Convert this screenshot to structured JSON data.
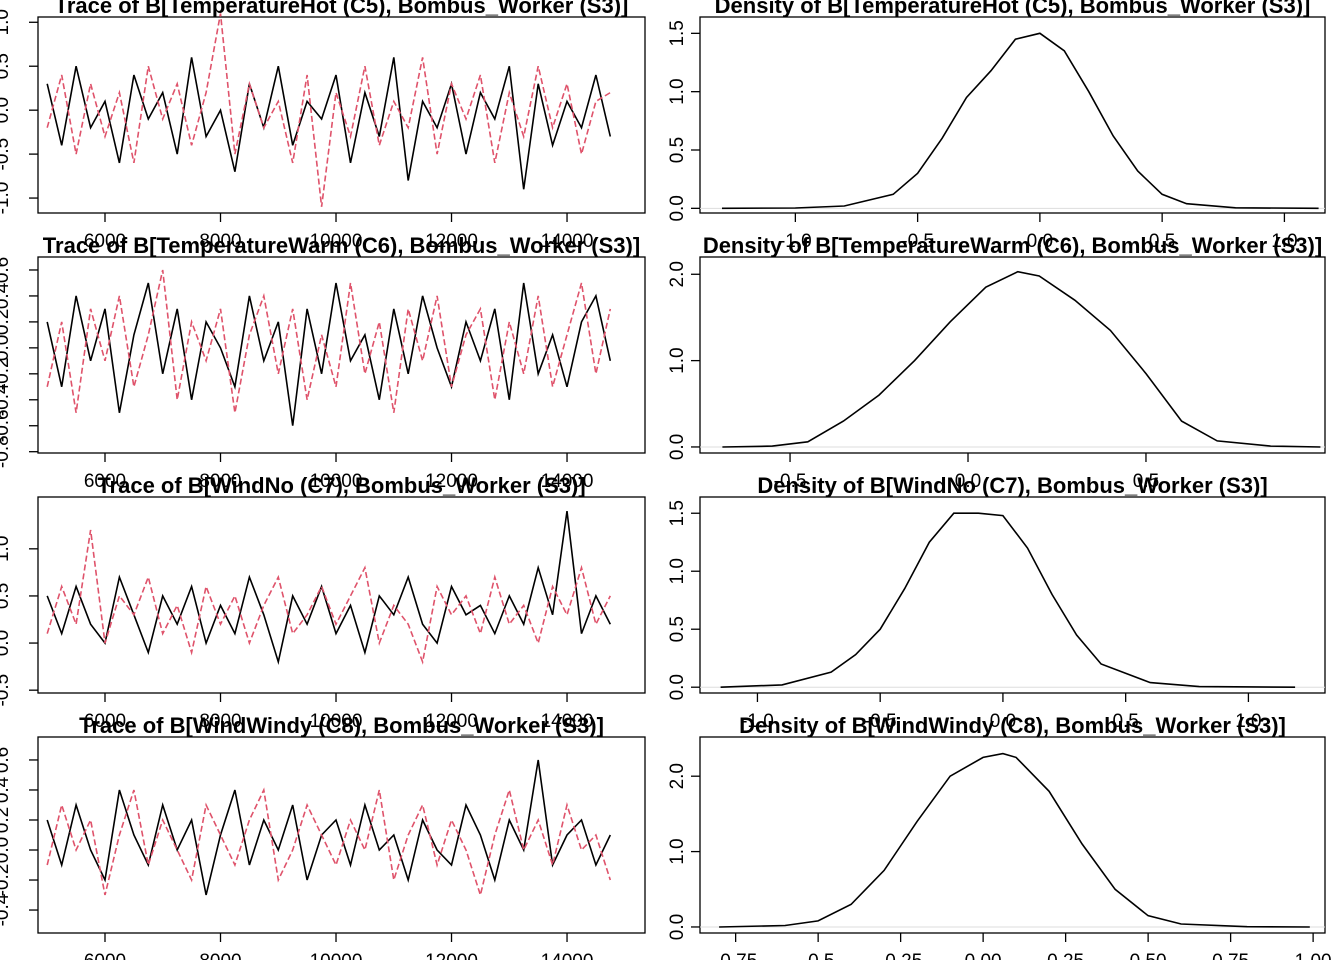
{
  "chart_data": [
    {
      "type": "line",
      "title": "Trace of B[TemperatureHot (C5), Bombus_Worker (S3)]",
      "x": [
        5000,
        5250,
        5500,
        5750,
        6000,
        6250,
        6500,
        6750,
        7000,
        7250,
        7500,
        7750,
        8000,
        8250,
        8500,
        8750,
        9000,
        9250,
        9500,
        9750,
        10000,
        10250,
        10500,
        10750,
        11000,
        11250,
        11500,
        11750,
        12000,
        12250,
        12500,
        12750,
        13000,
        13250,
        13500,
        13750,
        14000,
        14250,
        14500,
        14750
      ],
      "series": [
        {
          "color": "#000000",
          "values": [
            0.3,
            -0.4,
            0.5,
            -0.2,
            0.1,
            -0.6,
            0.4,
            -0.1,
            0.2,
            -0.5,
            0.6,
            -0.3,
            0.0,
            -0.7,
            0.3,
            -0.2,
            0.5,
            -0.4,
            0.1,
            -0.1,
            0.4,
            -0.6,
            0.2,
            -0.3,
            0.6,
            -0.8,
            0.1,
            -0.2,
            0.3,
            -0.5,
            0.2,
            -0.1,
            0.5,
            -0.9,
            0.3,
            -0.4,
            0.1,
            -0.2,
            0.4,
            -0.3
          ]
        },
        {
          "color": "#DF536B",
          "values": [
            -0.2,
            0.4,
            -0.5,
            0.3,
            -0.3,
            0.2,
            -0.6,
            0.5,
            -0.1,
            0.3,
            -0.4,
            0.2,
            1.1,
            -0.5,
            0.3,
            -0.2,
            0.1,
            -0.6,
            0.4,
            -1.1,
            0.2,
            -0.3,
            0.5,
            -0.4,
            0.1,
            -0.2,
            0.6,
            -0.5,
            0.3,
            -0.1,
            0.4,
            -0.6,
            0.2,
            -0.3,
            0.5,
            -0.2,
            0.3,
            -0.5,
            0.1,
            0.2
          ]
        }
      ],
      "xlim": [
        4840,
        15350
      ],
      "ylim": [
        -1.17,
        1.06
      ],
      "xticks": [
        6000,
        8000,
        10000,
        12000,
        14000
      ],
      "yticks": [
        {
          "value": -1,
          "label": "-1.0"
        },
        -0.5,
        {
          "value": 0,
          "label": "0.0"
        },
        0.5,
        {
          "value": 1,
          "label": "1.0"
        }
      ]
    },
    {
      "type": "line",
      "title": "Density of B[TemperatureHot (C5), Bombus_Worker (S3)]",
      "x": [
        -1.3,
        -1.0,
        -0.8,
        -0.6,
        -0.5,
        -0.4,
        -0.3,
        -0.2,
        -0.1,
        0.0,
        0.1,
        0.2,
        0.3,
        0.4,
        0.5,
        0.6,
        0.8,
        1.14
      ],
      "values": [
        0.0,
        0.003,
        0.02,
        0.12,
        0.3,
        0.6,
        0.95,
        1.18,
        1.45,
        1.5,
        1.35,
        1.0,
        0.62,
        0.32,
        0.12,
        0.04,
        0.005,
        0.0
      ],
      "color": "#000000",
      "xlim": [
        -1.39,
        1.166
      ],
      "ylim": [
        -0.04,
        1.64
      ],
      "xticks": [
        {
          "value": -1,
          "label": "-1.0"
        },
        -0.5,
        {
          "value": 0,
          "label": "0.0"
        },
        0.5,
        {
          "value": 1,
          "label": "1.0"
        }
      ],
      "yticks": [
        {
          "value": 0,
          "label": "0.0"
        },
        0.5,
        {
          "value": 1,
          "label": "1.0"
        },
        1.5
      ]
    },
    {
      "type": "line",
      "title": "Trace of B[TemperatureWarm (C6), Bombus_Worker (S3)]",
      "x": [
        5000,
        5250,
        5500,
        5750,
        6000,
        6250,
        6500,
        6750,
        7000,
        7250,
        7500,
        7750,
        8000,
        8250,
        8500,
        8750,
        9000,
        9250,
        9500,
        9750,
        10000,
        10250,
        10500,
        10750,
        11000,
        11250,
        11500,
        11750,
        12000,
        12250,
        12500,
        12750,
        13000,
        13250,
        13500,
        13750,
        14000,
        14250,
        14500,
        14750
      ],
      "series": [
        {
          "color": "#000000",
          "values": [
            0.2,
            -0.3,
            0.4,
            -0.1,
            0.3,
            -0.5,
            0.1,
            0.5,
            -0.2,
            0.3,
            -0.4,
            0.2,
            0.0,
            -0.3,
            0.4,
            -0.1,
            0.2,
            -0.6,
            0.3,
            -0.2,
            0.5,
            -0.1,
            0.1,
            -0.4,
            0.3,
            -0.2,
            0.4,
            0.0,
            -0.3,
            0.2,
            -0.1,
            0.3,
            -0.4,
            0.5,
            -0.2,
            0.1,
            -0.3,
            0.2,
            0.4,
            -0.1
          ]
        },
        {
          "color": "#DF536B",
          "values": [
            -0.3,
            0.2,
            -0.5,
            0.3,
            -0.1,
            0.4,
            -0.3,
            0.1,
            0.6,
            -0.4,
            0.2,
            -0.1,
            0.3,
            -0.5,
            0.1,
            0.4,
            -0.2,
            0.3,
            -0.4,
            0.1,
            -0.3,
            0.5,
            -0.2,
            0.2,
            -0.5,
            0.3,
            -0.1,
            0.4,
            -0.3,
            0.1,
            0.3,
            -0.4,
            0.2,
            -0.2,
            0.4,
            -0.3,
            0.1,
            0.5,
            -0.2,
            0.3
          ]
        }
      ],
      "xlim": [
        4840,
        15350
      ],
      "ylim": [
        -0.81,
        0.7
      ],
      "xticks": [
        6000,
        8000,
        10000,
        12000,
        14000
      ],
      "yticks": [
        -0.8,
        -0.6,
        -0.4,
        -0.2,
        {
          "value": 0,
          "label": "0.0"
        },
        0.2,
        0.4,
        0.6
      ]
    },
    {
      "type": "line",
      "title": "Density of B[TemperatureWarm (C6), Bombus_Worker (S3)]",
      "x": [
        -0.69,
        -0.55,
        -0.45,
        -0.35,
        -0.25,
        -0.15,
        -0.05,
        0.05,
        0.14,
        0.2,
        0.3,
        0.4,
        0.5,
        0.6,
        0.7,
        0.85,
        0.99
      ],
      "values": [
        0.0,
        0.01,
        0.06,
        0.3,
        0.6,
        1.0,
        1.45,
        1.85,
        2.03,
        1.98,
        1.7,
        1.35,
        0.85,
        0.3,
        0.07,
        0.01,
        0.0
      ],
      "color": "#000000",
      "xlim": [
        -0.753,
        1.003
      ],
      "ylim": [
        -0.07,
        2.2
      ],
      "xticks": [
        -0.5,
        {
          "value": 0,
          "label": "0.0"
        },
        0.5
      ],
      "yticks": [
        {
          "value": 0,
          "label": "0.0"
        },
        {
          "value": 1,
          "label": "1.0"
        },
        {
          "value": 2,
          "label": "2.0"
        }
      ]
    },
    {
      "type": "line",
      "title": "Trace of B[WindNo (C7), Bombus_Worker (S3)]",
      "x": [
        5000,
        5250,
        5500,
        5750,
        6000,
        6250,
        6500,
        6750,
        7000,
        7250,
        7500,
        7750,
        8000,
        8250,
        8500,
        8750,
        9000,
        9250,
        9500,
        9750,
        10000,
        10250,
        10500,
        10750,
        11000,
        11250,
        11500,
        11750,
        12000,
        12250,
        12500,
        12750,
        13000,
        13250,
        13500,
        13750,
        14000,
        14250,
        14500,
        14750
      ],
      "series": [
        {
          "color": "#000000",
          "values": [
            0.5,
            0.1,
            0.6,
            0.2,
            0.0,
            0.7,
            0.3,
            -0.1,
            0.5,
            0.2,
            0.6,
            0.0,
            0.4,
            0.1,
            0.7,
            0.3,
            -0.2,
            0.5,
            0.2,
            0.6,
            0.1,
            0.4,
            -0.1,
            0.5,
            0.3,
            0.7,
            0.2,
            0.0,
            0.6,
            0.3,
            0.4,
            0.1,
            0.5,
            0.2,
            0.8,
            0.3,
            1.4,
            0.1,
            0.5,
            0.2
          ]
        },
        {
          "color": "#DF536B",
          "values": [
            0.1,
            0.6,
            0.2,
            1.2,
            0.0,
            0.5,
            0.3,
            0.7,
            0.1,
            0.4,
            -0.1,
            0.6,
            0.2,
            0.5,
            0.0,
            0.4,
            0.7,
            0.1,
            0.3,
            0.6,
            0.2,
            0.5,
            0.8,
            0.0,
            0.4,
            0.2,
            -0.2,
            0.6,
            0.3,
            0.5,
            0.1,
            0.7,
            0.2,
            0.4,
            0.0,
            0.6,
            0.3,
            0.8,
            0.2,
            0.5
          ]
        }
      ],
      "xlim": [
        4840,
        15350
      ],
      "ylim": [
        -0.53,
        1.55
      ],
      "xticks": [
        6000,
        8000,
        10000,
        12000,
        14000
      ],
      "yticks": [
        -0.5,
        {
          "value": 0,
          "label": "0.0"
        },
        0.5,
        {
          "value": 1,
          "label": "1.0"
        }
      ]
    },
    {
      "type": "line",
      "title": "Density of B[WindNo (C7), Bombus_Worker (S3)]",
      "x": [
        -1.15,
        -0.9,
        -0.7,
        -0.6,
        -0.5,
        -0.4,
        -0.3,
        -0.2,
        -0.1,
        0.0,
        0.1,
        0.2,
        0.3,
        0.4,
        0.6,
        0.8,
        1.19
      ],
      "values": [
        0.0,
        0.02,
        0.13,
        0.28,
        0.5,
        0.85,
        1.25,
        1.5,
        1.5,
        1.48,
        1.2,
        0.8,
        0.45,
        0.2,
        0.04,
        0.005,
        0.0
      ],
      "color": "#000000",
      "xlim": [
        -1.234,
        1.312
      ],
      "ylim": [
        -0.05,
        1.64
      ],
      "xticks": [
        {
          "value": -1,
          "label": "-1.0"
        },
        -0.5,
        {
          "value": 0,
          "label": "0.0"
        },
        0.5,
        {
          "value": 1,
          "label": "1.0"
        }
      ],
      "yticks": [
        {
          "value": 0,
          "label": "0.0"
        },
        0.5,
        {
          "value": 1,
          "label": "1.0"
        },
        1.5
      ]
    },
    {
      "type": "line",
      "title": "Trace of B[WindWindy (C8), Bombus_Worker (S3)]",
      "x": [
        5000,
        5250,
        5500,
        5750,
        6000,
        6250,
        6500,
        6750,
        7000,
        7250,
        7500,
        7750,
        8000,
        8250,
        8500,
        8750,
        9000,
        9250,
        9500,
        9750,
        10000,
        10250,
        10500,
        10750,
        11000,
        11250,
        11500,
        11750,
        12000,
        12250,
        12500,
        12750,
        13000,
        13250,
        13500,
        13750,
        14000,
        14250,
        14500,
        14750
      ],
      "series": [
        {
          "color": "#000000",
          "values": [
            0.2,
            -0.1,
            0.3,
            0.0,
            -0.2,
            0.4,
            0.1,
            -0.1,
            0.3,
            0.0,
            0.2,
            -0.3,
            0.1,
            0.4,
            -0.1,
            0.2,
            0.0,
            0.3,
            -0.2,
            0.1,
            0.2,
            -0.1,
            0.3,
            0.0,
            0.1,
            -0.2,
            0.2,
            0.0,
            -0.1,
            0.3,
            0.1,
            -0.2,
            0.2,
            0.0,
            0.6,
            -0.1,
            0.1,
            0.2,
            -0.1,
            0.1
          ]
        },
        {
          "color": "#DF536B",
          "values": [
            -0.1,
            0.3,
            0.0,
            0.2,
            -0.3,
            0.1,
            0.4,
            -0.1,
            0.2,
            0.0,
            -0.2,
            0.3,
            0.1,
            -0.1,
            0.2,
            0.4,
            -0.2,
            0.0,
            0.3,
            0.1,
            -0.1,
            0.2,
            0.0,
            0.4,
            -0.2,
            0.1,
            0.3,
            -0.1,
            0.2,
            0.0,
            -0.3,
            0.1,
            0.4,
            0.0,
            0.2,
            -0.1,
            0.3,
            0.0,
            0.1,
            -0.2
          ]
        }
      ],
      "xlim": [
        4840,
        15350
      ],
      "ylim": [
        -0.553,
        0.753
      ],
      "xticks": [
        6000,
        8000,
        10000,
        12000,
        14000
      ],
      "yticks": [
        -0.4,
        -0.2,
        {
          "value": 0,
          "label": "0.0"
        },
        0.2,
        0.4,
        0.6
      ]
    },
    {
      "type": "line",
      "title": "Density of B[WindWindy (C8), Bombus_Worker (S3)]",
      "x": [
        -0.8,
        -0.6,
        -0.5,
        -0.4,
        -0.3,
        -0.2,
        -0.1,
        0.0,
        0.06,
        0.1,
        0.2,
        0.3,
        0.4,
        0.5,
        0.6,
        0.8,
        0.99
      ],
      "values": [
        0.0,
        0.02,
        0.08,
        0.3,
        0.75,
        1.4,
        2.0,
        2.25,
        2.3,
        2.25,
        1.8,
        1.1,
        0.5,
        0.15,
        0.04,
        0.003,
        0.0
      ],
      "color": "#000000",
      "xlim": [
        -0.858,
        1.036
      ],
      "ylim": [
        -0.08,
        2.52
      ],
      "xticks": [
        -0.75,
        -0.5,
        -0.25,
        {
          "value": 0,
          "label": "0.00"
        },
        0.25,
        {
          "value": 0.5,
          "label": "0.50"
        },
        0.75,
        {
          "value": 1,
          "label": "1.00"
        }
      ],
      "yticks": [
        {
          "value": 0,
          "label": "0.0"
        },
        {
          "value": 1,
          "label": "1.0"
        },
        {
          "value": 2,
          "label": "2.0"
        }
      ]
    }
  ]
}
